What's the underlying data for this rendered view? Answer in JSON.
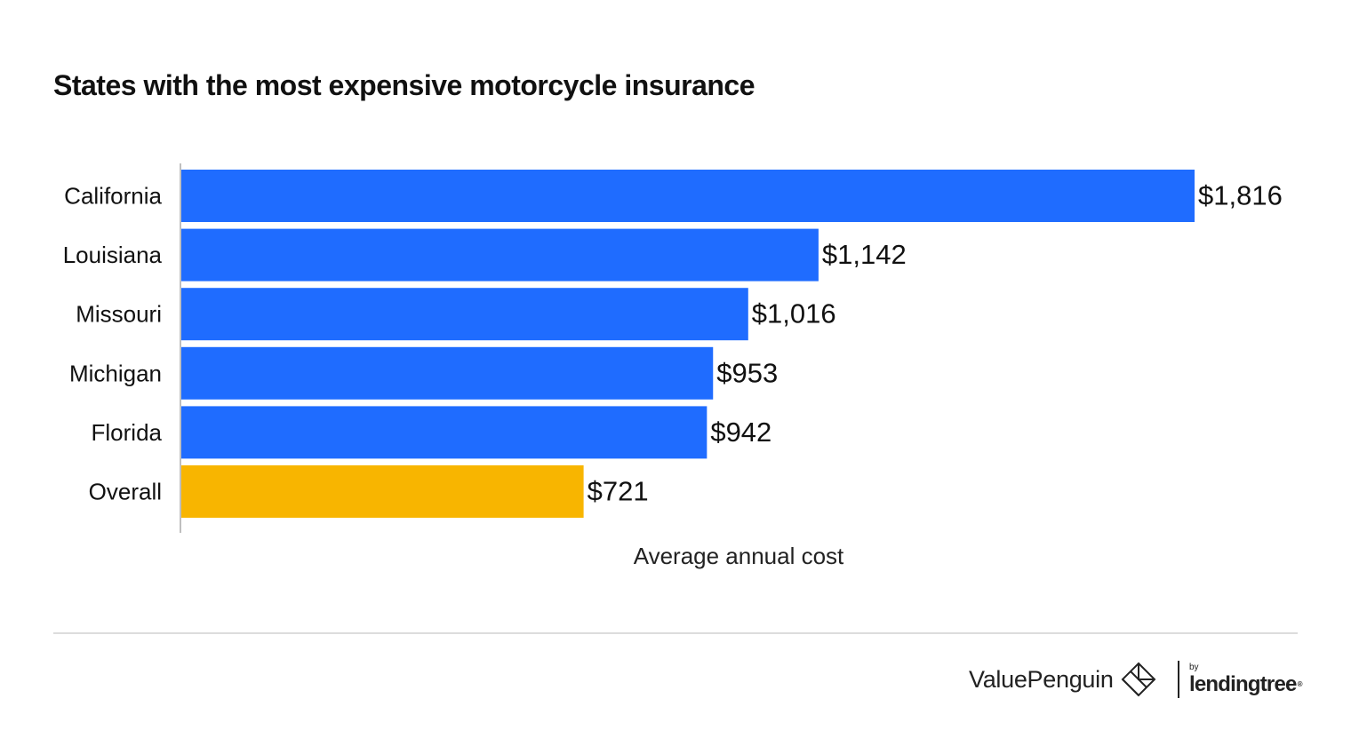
{
  "chart_data": {
    "type": "bar",
    "orientation": "horizontal",
    "title": "States with the most expensive motorcycle insurance",
    "xlabel": "Average annual cost",
    "ylabel": "",
    "categories": [
      "California",
      "Louisiana",
      "Missouri",
      "Michigan",
      "Florida",
      "Overall"
    ],
    "values": [
      1816,
      1142,
      1016,
      953,
      942,
      721
    ],
    "value_labels": [
      "$1,816",
      "$1,142",
      "$1,016",
      "$953",
      "$942",
      "$721"
    ],
    "colors": [
      "#1f6cff",
      "#1f6cff",
      "#1f6cff",
      "#1f6cff",
      "#1f6cff",
      "#f8b500"
    ],
    "xlim": [
      0,
      1816
    ],
    "grid": false,
    "legend": "none"
  },
  "branding": {
    "primary": "ValuePenguin",
    "by": "by",
    "partner": "lendingtree",
    "trademark": "®"
  },
  "colors": {
    "highlight": "#1f6cff",
    "overall": "#f8b500",
    "axis": "#bfbfbf"
  }
}
